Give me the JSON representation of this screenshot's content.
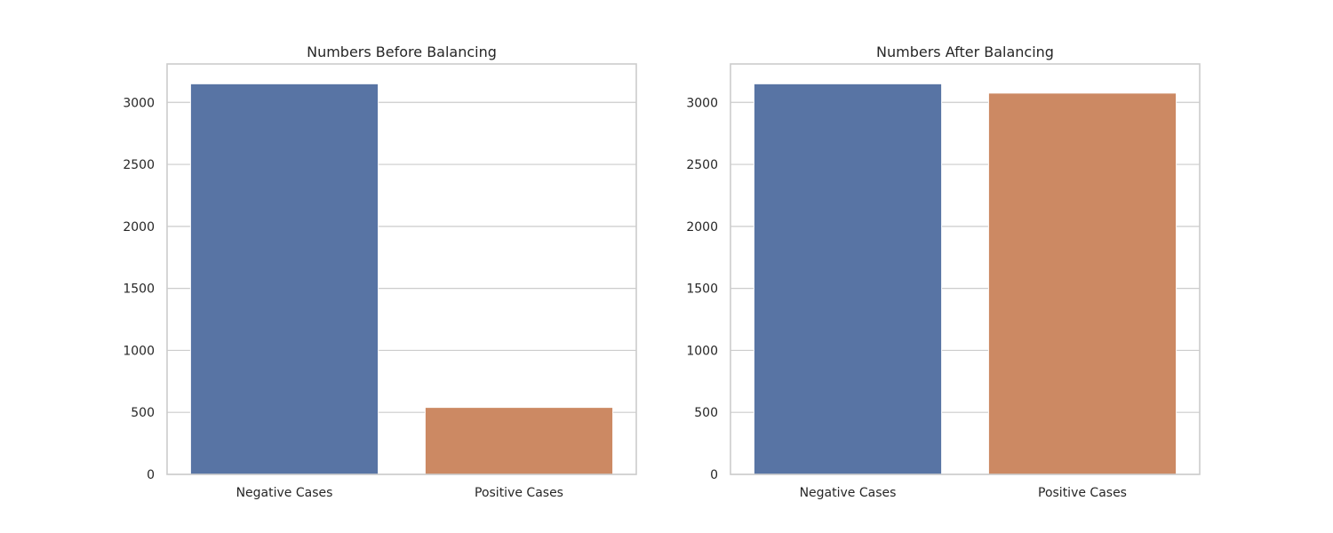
{
  "chart_data": [
    {
      "type": "bar",
      "title": "Numbers Before Balancing",
      "categories": [
        "Negative Cases",
        "Positive Cases"
      ],
      "values": [
        3150,
        540
      ],
      "colors": [
        "#5874a4",
        "#cc8963"
      ],
      "xlabel": "",
      "ylabel": "",
      "ylim": [
        0,
        3310
      ],
      "yticks": [
        0,
        500,
        1000,
        1500,
        2000,
        2500,
        3000
      ],
      "grid": "horizontal"
    },
    {
      "type": "bar",
      "title": "Numbers After Balancing",
      "categories": [
        "Negative Cases",
        "Positive Cases"
      ],
      "values": [
        3150,
        3075
      ],
      "colors": [
        "#5874a4",
        "#cc8963"
      ],
      "xlabel": "",
      "ylabel": "",
      "ylim": [
        0,
        3310
      ],
      "yticks": [
        0,
        500,
        1000,
        1500,
        2000,
        2500,
        3000
      ],
      "grid": "horizontal"
    }
  ]
}
